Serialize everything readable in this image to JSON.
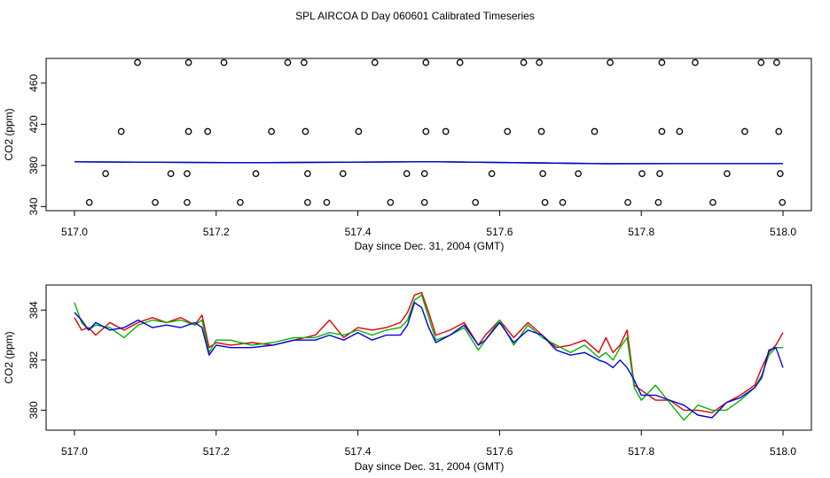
{
  "title": "SPL AIRCOA D  Day 060601  Calibrated Timeseries",
  "colors": {
    "series1": "#e00000",
    "series2": "#00b400",
    "series3": "#0000e0",
    "flags": "#000000",
    "frame": "#000000"
  },
  "chart_data": [
    {
      "type": "line",
      "panel": "top",
      "xlabel": "Day since Dec. 31, 2004 (GMT)",
      "ylabel": "CO2 (ppm)",
      "xlim": [
        516.96,
        518.04
      ],
      "ylim": [
        336,
        484
      ],
      "xticks": [
        517.0,
        517.2,
        517.4,
        517.6,
        517.8,
        518.0
      ],
      "xtick_labels": [
        "517.0",
        "517.2",
        "517.4",
        "517.6",
        "517.8",
        "518.0"
      ],
      "yticks": [
        340,
        380,
        420,
        460
      ],
      "ytick_labels": [
        "340",
        "380",
        "420",
        "460"
      ],
      "flag_points": [
        {
          "x": 517.089,
          "y": 480
        },
        {
          "x": 517.161,
          "y": 480
        },
        {
          "x": 517.211,
          "y": 480
        },
        {
          "x": 517.301,
          "y": 480
        },
        {
          "x": 517.324,
          "y": 480
        },
        {
          "x": 517.424,
          "y": 480
        },
        {
          "x": 517.496,
          "y": 480
        },
        {
          "x": 517.544,
          "y": 480
        },
        {
          "x": 517.634,
          "y": 480
        },
        {
          "x": 517.656,
          "y": 480
        },
        {
          "x": 517.756,
          "y": 480
        },
        {
          "x": 517.829,
          "y": 480
        },
        {
          "x": 517.876,
          "y": 480
        },
        {
          "x": 517.969,
          "y": 480
        },
        {
          "x": 517.991,
          "y": 480
        },
        {
          "x": 517.066,
          "y": 413
        },
        {
          "x": 517.161,
          "y": 413
        },
        {
          "x": 517.188,
          "y": 413
        },
        {
          "x": 517.278,
          "y": 413
        },
        {
          "x": 517.326,
          "y": 413
        },
        {
          "x": 517.401,
          "y": 413
        },
        {
          "x": 517.496,
          "y": 413
        },
        {
          "x": 517.524,
          "y": 413
        },
        {
          "x": 517.611,
          "y": 413
        },
        {
          "x": 517.659,
          "y": 413
        },
        {
          "x": 517.734,
          "y": 413
        },
        {
          "x": 517.829,
          "y": 413
        },
        {
          "x": 517.854,
          "y": 413
        },
        {
          "x": 517.946,
          "y": 413
        },
        {
          "x": 517.994,
          "y": 413
        },
        {
          "x": 517.044,
          "y": 372
        },
        {
          "x": 517.136,
          "y": 372
        },
        {
          "x": 517.159,
          "y": 372
        },
        {
          "x": 517.256,
          "y": 372
        },
        {
          "x": 517.329,
          "y": 372
        },
        {
          "x": 517.379,
          "y": 372
        },
        {
          "x": 517.469,
          "y": 372
        },
        {
          "x": 517.494,
          "y": 372
        },
        {
          "x": 517.589,
          "y": 372
        },
        {
          "x": 517.661,
          "y": 372
        },
        {
          "x": 517.711,
          "y": 372
        },
        {
          "x": 517.801,
          "y": 372
        },
        {
          "x": 517.826,
          "y": 372
        },
        {
          "x": 517.921,
          "y": 372
        },
        {
          "x": 517.996,
          "y": 372
        },
        {
          "x": 517.021,
          "y": 344
        },
        {
          "x": 517.114,
          "y": 344
        },
        {
          "x": 517.159,
          "y": 344
        },
        {
          "x": 517.234,
          "y": 344
        },
        {
          "x": 517.329,
          "y": 344
        },
        {
          "x": 517.356,
          "y": 344
        },
        {
          "x": 517.446,
          "y": 344
        },
        {
          "x": 517.494,
          "y": 344
        },
        {
          "x": 517.566,
          "y": 344
        },
        {
          "x": 517.664,
          "y": 344
        },
        {
          "x": 517.689,
          "y": 344
        },
        {
          "x": 517.781,
          "y": 344
        },
        {
          "x": 517.824,
          "y": 344
        },
        {
          "x": 517.901,
          "y": 344
        },
        {
          "x": 517.999,
          "y": 344
        }
      ],
      "series": [
        {
          "name": "series1",
          "color": "#e00000",
          "x": [
            517.0,
            517.25,
            517.5,
            517.75,
            518.0
          ],
          "y": [
            383.5,
            382.6,
            383.6,
            381.7,
            381.8
          ]
        },
        {
          "name": "series2",
          "color": "#00b400",
          "x": [
            517.0,
            517.25,
            517.5,
            517.75,
            518.0
          ],
          "y": [
            383.5,
            382.6,
            383.6,
            381.7,
            381.8
          ]
        },
        {
          "name": "series3",
          "color": "#0000e0",
          "x": [
            517.0,
            517.25,
            517.5,
            517.75,
            518.0
          ],
          "y": [
            383.5,
            382.6,
            383.6,
            381.7,
            381.8
          ]
        }
      ]
    },
    {
      "type": "line",
      "panel": "bottom",
      "xlabel": "Day since Dec. 31, 2004 (GMT)",
      "ylabel": "CO2 (ppm)",
      "xlim": [
        516.96,
        518.04
      ],
      "ylim": [
        379.2,
        385.0
      ],
      "xticks": [
        517.0,
        517.2,
        517.4,
        517.6,
        517.8,
        518.0
      ],
      "xtick_labels": [
        "517.0",
        "517.2",
        "517.4",
        "517.6",
        "517.8",
        "518.0"
      ],
      "yticks": [
        380,
        382,
        384
      ],
      "ytick_labels": [
        "380",
        "382",
        "384"
      ],
      "series": [
        {
          "name": "series1",
          "color": "#e00000",
          "x": [
            517.0,
            517.01,
            517.02,
            517.03,
            517.05,
            517.07,
            517.09,
            517.11,
            517.13,
            517.15,
            517.17,
            517.18,
            517.19,
            517.2,
            517.22,
            517.25,
            517.28,
            517.31,
            517.34,
            517.36,
            517.38,
            517.4,
            517.42,
            517.44,
            517.46,
            517.47,
            517.48,
            517.49,
            517.5,
            517.51,
            517.53,
            517.55,
            517.57,
            517.58,
            517.6,
            517.62,
            517.64,
            517.66,
            517.68,
            517.7,
            517.72,
            517.74,
            517.75,
            517.76,
            517.77,
            517.78,
            517.79,
            517.8,
            517.82,
            517.84,
            517.86,
            517.88,
            517.9,
            517.92,
            517.94,
            517.96,
            517.97,
            517.98,
            517.99,
            518.0
          ],
          "y": [
            383.7,
            383.2,
            383.3,
            383.0,
            383.5,
            383.2,
            383.5,
            383.7,
            383.5,
            383.7,
            383.4,
            383.8,
            382.5,
            382.7,
            382.6,
            382.7,
            382.6,
            382.8,
            383.0,
            383.6,
            382.9,
            383.3,
            383.2,
            383.3,
            383.5,
            383.9,
            384.6,
            384.7,
            383.9,
            383.0,
            383.2,
            383.5,
            382.6,
            383.0,
            383.6,
            382.9,
            383.5,
            383.0,
            382.5,
            382.6,
            382.8,
            382.3,
            382.9,
            382.3,
            382.6,
            383.2,
            381.0,
            380.8,
            380.4,
            380.4,
            380.0,
            380.0,
            379.9,
            380.3,
            380.6,
            381.0,
            381.7,
            382.3,
            382.6,
            383.1
          ]
        },
        {
          "name": "series2",
          "color": "#00b400",
          "x": [
            517.0,
            517.01,
            517.02,
            517.03,
            517.05,
            517.07,
            517.09,
            517.11,
            517.13,
            517.15,
            517.17,
            517.18,
            517.19,
            517.2,
            517.22,
            517.25,
            517.28,
            517.31,
            517.34,
            517.36,
            517.38,
            517.4,
            517.42,
            517.44,
            517.46,
            517.47,
            517.48,
            517.49,
            517.5,
            517.51,
            517.53,
            517.55,
            517.57,
            517.58,
            517.6,
            517.62,
            517.64,
            517.66,
            517.68,
            517.7,
            517.72,
            517.74,
            517.75,
            517.76,
            517.77,
            517.78,
            517.79,
            517.8,
            517.82,
            517.84,
            517.86,
            517.88,
            517.9,
            517.92,
            517.94,
            517.96,
            517.97,
            517.98,
            517.99,
            518.0
          ],
          "y": [
            384.3,
            383.5,
            383.2,
            383.4,
            383.3,
            382.9,
            383.4,
            383.6,
            383.5,
            383.6,
            383.4,
            383.6,
            382.3,
            382.8,
            382.8,
            382.6,
            382.7,
            382.9,
            382.9,
            383.1,
            383.0,
            383.2,
            383.0,
            383.2,
            383.3,
            383.6,
            384.4,
            384.6,
            383.7,
            382.8,
            383.0,
            383.3,
            382.4,
            382.8,
            383.6,
            382.6,
            383.4,
            382.9,
            382.6,
            382.3,
            382.6,
            382.1,
            382.3,
            382.0,
            382.5,
            382.9,
            380.9,
            380.4,
            381.0,
            380.3,
            379.6,
            380.2,
            380.0,
            380.0,
            380.4,
            380.9,
            381.4,
            382.2,
            382.5,
            382.5
          ]
        },
        {
          "name": "series3",
          "color": "#0000e0",
          "x": [
            517.0,
            517.01,
            517.02,
            517.03,
            517.05,
            517.07,
            517.09,
            517.11,
            517.13,
            517.15,
            517.17,
            517.18,
            517.19,
            517.2,
            517.22,
            517.25,
            517.28,
            517.31,
            517.34,
            517.36,
            517.38,
            517.4,
            517.42,
            517.44,
            517.46,
            517.47,
            517.48,
            517.49,
            517.5,
            517.51,
            517.53,
            517.55,
            517.57,
            517.58,
            517.6,
            517.62,
            517.64,
            517.66,
            517.68,
            517.7,
            517.72,
            517.74,
            517.75,
            517.76,
            517.77,
            517.78,
            517.79,
            517.8,
            517.82,
            517.84,
            517.86,
            517.88,
            517.9,
            517.92,
            517.94,
            517.96,
            517.97,
            517.98,
            517.99,
            518.0
          ],
          "y": [
            383.9,
            383.6,
            383.2,
            383.5,
            383.2,
            383.3,
            383.6,
            383.3,
            383.4,
            383.3,
            383.5,
            383.3,
            382.2,
            382.6,
            382.5,
            382.5,
            382.6,
            382.8,
            382.8,
            383.0,
            382.8,
            383.1,
            382.8,
            383.0,
            383.0,
            383.4,
            384.3,
            384.1,
            383.3,
            382.7,
            383.0,
            383.4,
            382.6,
            382.8,
            383.5,
            382.7,
            383.2,
            383.0,
            382.4,
            382.2,
            382.3,
            382.0,
            381.9,
            381.7,
            382.0,
            381.7,
            381.2,
            380.6,
            380.6,
            380.4,
            380.2,
            379.8,
            379.7,
            380.3,
            380.5,
            380.9,
            381.3,
            382.4,
            382.5,
            381.7
          ]
        }
      ]
    }
  ]
}
